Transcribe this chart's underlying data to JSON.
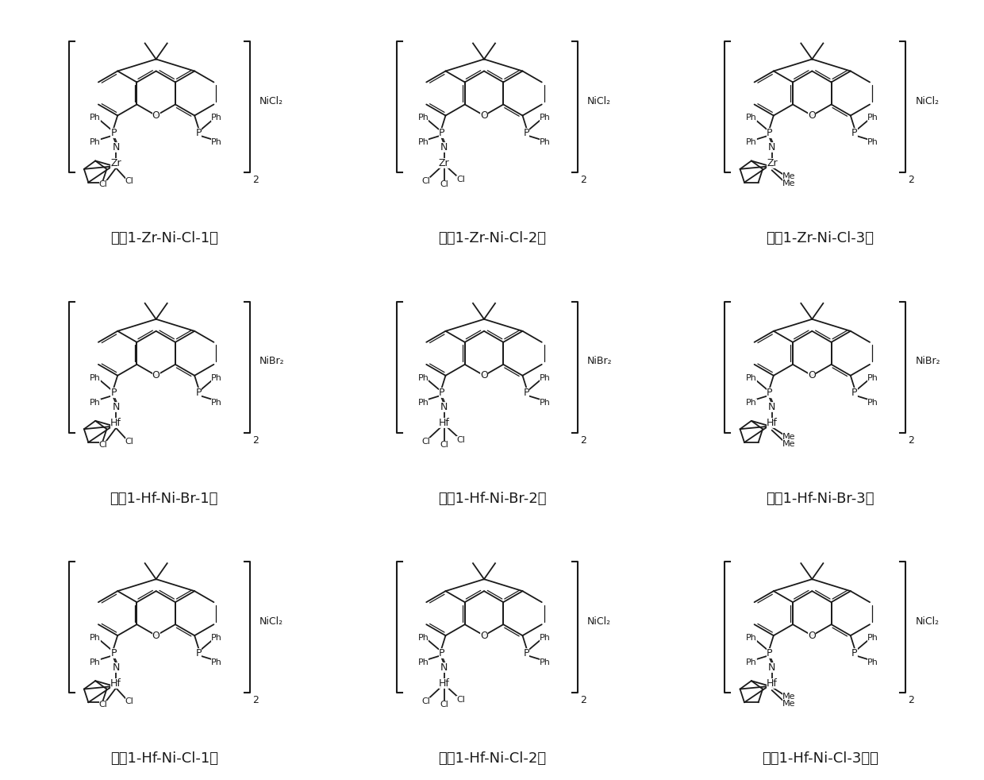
{
  "background": "#ffffff",
  "line_color": "#1a1a1a",
  "labels": [
    "式（1-Zr-Ni-Cl-1）",
    "式（1-Zr-Ni-Cl-2）",
    "式（1-Zr-Ni-Cl-3）",
    "式（1-Hf-Ni-Br-1）",
    "式（1-Hf-Ni-Br-2）",
    "式（1-Hf-Ni-Br-3）",
    "式（1-Hf-Ni-Cl-1）",
    "式（1-Hf-Ni-Cl-2）",
    "式（1-Hf-Ni-Cl-3）。"
  ],
  "metal1": [
    "Zr",
    "Zr",
    "Zr",
    "Hf",
    "Hf",
    "Hf",
    "Hf",
    "Hf",
    "Hf"
  ],
  "halide_metal": [
    "Cl",
    "Cl",
    "Cl",
    "Cl",
    "Cl",
    "Cl",
    "Cl",
    "Cl",
    "Cl"
  ],
  "ni_label": [
    "NiCl₂",
    "NiCl₂",
    "NiCl₂",
    "NiBr₂",
    "NiBr₂",
    "NiBr₂",
    "NiCl₂",
    "NiCl₂",
    "NiCl₂"
  ],
  "variant": [
    1,
    2,
    3,
    1,
    2,
    3,
    1,
    2,
    3
  ],
  "label_fontsize": 13
}
